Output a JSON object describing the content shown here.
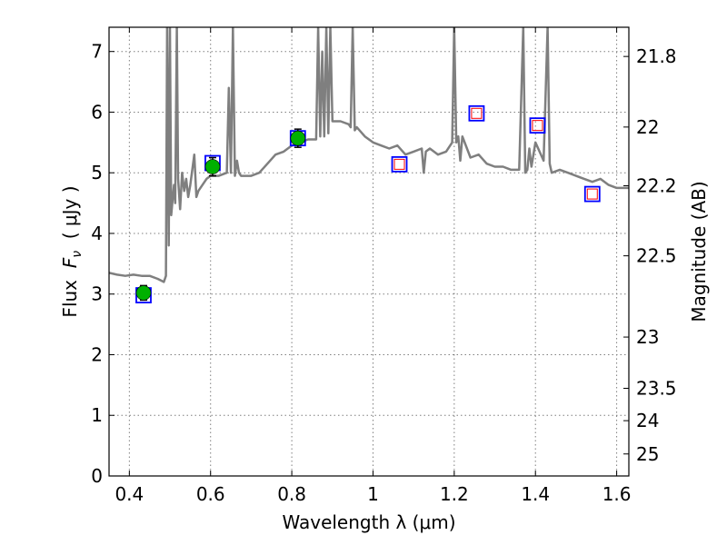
{
  "chart_data": {
    "type": "scatter",
    "xlabel": "Wavelength  λ (μm)",
    "ylabel": "Flux  F_ν  ( μJy )",
    "ylabel_parts": {
      "prefix": "Flux  ",
      "symbol": "F",
      "subscript": "ν",
      "suffix": "  ( μJy )"
    },
    "y2label": "Magnitude (AB)",
    "xlim": [
      0.35,
      1.63
    ],
    "ylim": [
      0,
      7.4
    ],
    "grid": true,
    "x_ticks": [
      0.4,
      0.6,
      0.8,
      1.0,
      1.2,
      1.4,
      1.6
    ],
    "x_tick_labels": [
      "0.4",
      "0.6",
      "0.8",
      "1",
      "1.2",
      "1.4",
      "1.6"
    ],
    "y_ticks": [
      0,
      1,
      2,
      3,
      4,
      5,
      6,
      7
    ],
    "y_tick_labels": [
      "0",
      "1",
      "2",
      "3",
      "4",
      "5",
      "6",
      "7"
    ],
    "mag_ticks": [
      21.8,
      22,
      22.2,
      22.5,
      23,
      23.5,
      24,
      25
    ],
    "mag_tick_labels": [
      "21.8",
      "22",
      "22.2",
      "22.5",
      "23",
      "23.5",
      "24",
      "25"
    ],
    "series": [
      {
        "kind": "line",
        "color": "#7f7f7f",
        "x": [
          0.35,
          0.37,
          0.39,
          0.41,
          0.43,
          0.45,
          0.47,
          0.485,
          0.49,
          0.493,
          0.497,
          0.5,
          0.503,
          0.507,
          0.51,
          0.513,
          0.517,
          0.52,
          0.525,
          0.53,
          0.535,
          0.54,
          0.545,
          0.55,
          0.56,
          0.565,
          0.57,
          0.58,
          0.59,
          0.6,
          0.62,
          0.64,
          0.645,
          0.65,
          0.655,
          0.66,
          0.665,
          0.67,
          0.675,
          0.7,
          0.72,
          0.74,
          0.76,
          0.78,
          0.8,
          0.82,
          0.84,
          0.86,
          0.865,
          0.87,
          0.875,
          0.88,
          0.885,
          0.89,
          0.895,
          0.9,
          0.92,
          0.94,
          0.945,
          0.95,
          0.955,
          0.96,
          0.98,
          1.0,
          1.02,
          1.04,
          1.06,
          1.08,
          1.1,
          1.12,
          1.125,
          1.13,
          1.14,
          1.16,
          1.18,
          1.195,
          1.2,
          1.205,
          1.21,
          1.215,
          1.22,
          1.24,
          1.26,
          1.28,
          1.3,
          1.32,
          1.34,
          1.36,
          1.37,
          1.375,
          1.38,
          1.385,
          1.39,
          1.4,
          1.42,
          1.43,
          1.435,
          1.44,
          1.46,
          1.48,
          1.5,
          1.52,
          1.54,
          1.56,
          1.58,
          1.6,
          1.63
        ],
        "y": [
          3.35,
          3.32,
          3.3,
          3.32,
          3.3,
          3.3,
          3.25,
          3.2,
          3.3,
          7.4,
          3.8,
          7.4,
          4.3,
          4.6,
          4.8,
          4.5,
          7.4,
          4.9,
          4.4,
          5.0,
          4.7,
          4.9,
          4.6,
          4.8,
          5.3,
          4.6,
          4.7,
          4.8,
          4.9,
          4.95,
          4.95,
          5.0,
          6.4,
          5.0,
          7.4,
          4.95,
          5.2,
          5.0,
          4.95,
          4.95,
          5.0,
          5.15,
          5.3,
          5.35,
          5.45,
          5.5,
          5.55,
          5.55,
          7.4,
          5.6,
          7.0,
          5.6,
          7.4,
          5.65,
          7.4,
          5.85,
          5.85,
          5.8,
          5.75,
          7.4,
          5.7,
          5.75,
          5.6,
          5.5,
          5.45,
          5.4,
          5.45,
          5.3,
          5.35,
          5.4,
          5.0,
          5.35,
          5.4,
          5.3,
          5.35,
          5.5,
          7.4,
          5.5,
          5.6,
          5.2,
          5.6,
          5.25,
          5.3,
          5.15,
          5.1,
          5.1,
          5.05,
          5.05,
          7.4,
          5.0,
          5.05,
          5.4,
          5.1,
          5.5,
          5.2,
          7.4,
          5.15,
          5.0,
          5.05,
          5.0,
          4.95,
          4.9,
          4.85,
          4.9,
          4.8,
          4.75,
          4.75
        ]
      },
      {
        "kind": "squares",
        "name": "",
        "edge_color": "#0000ff",
        "x": [
          0.435,
          0.605,
          0.815,
          1.065,
          1.255,
          1.405,
          1.54
        ],
        "y": [
          2.98,
          5.16,
          5.57,
          5.14,
          5.98,
          5.78,
          4.65
        ]
      },
      {
        "kind": "small_squares",
        "edge_color": "#ff0000",
        "x": [
          1.065,
          1.255,
          1.405,
          1.54
        ],
        "y": [
          5.14,
          5.98,
          5.78,
          4.65
        ]
      },
      {
        "kind": "points_with_errorbars",
        "color": "#00b000",
        "x": [
          0.435,
          0.605,
          0.815
        ],
        "y": [
          3.02,
          5.1,
          5.57
        ],
        "yerr": [
          0.12,
          0.15,
          0.15
        ]
      }
    ]
  }
}
